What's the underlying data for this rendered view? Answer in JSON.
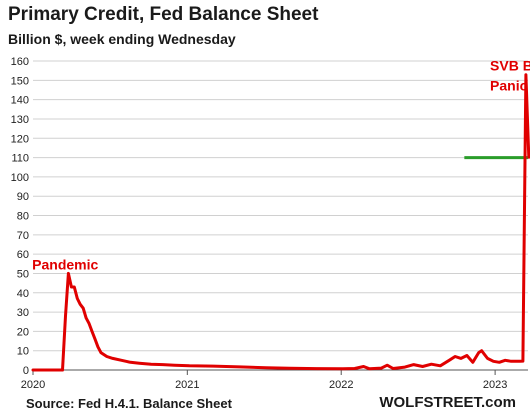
{
  "title": "Primary Credit, Fed Balance Sheet",
  "subtitle": "Billion $, week ending Wednesday",
  "source": "Source: Fed H.4.1. Balance Sheet",
  "brand": "WOLFSTREET.com",
  "colors": {
    "line": "#e00000",
    "reference": "#2a9d2a",
    "grid": "#d0d0d0",
    "annotation": "#e00000"
  },
  "chart_data": {
    "type": "line",
    "title": "Primary Credit, Fed Balance Sheet",
    "subtitle": "Billion $, week ending Wednesday",
    "ylim": [
      0,
      160
    ],
    "xlim": [
      "2020-01-01",
      "2023-03-20"
    ],
    "yticks": [
      0,
      10,
      20,
      30,
      40,
      50,
      60,
      70,
      80,
      90,
      100,
      110,
      120,
      130,
      140,
      150,
      160
    ],
    "xticks": [
      {
        "label": "2020",
        "date": "2020-01-01"
      },
      {
        "label": "2021",
        "date": "2021-01-01"
      },
      {
        "label": "2022",
        "date": "2022-01-01"
      },
      {
        "label": "2023",
        "date": "2023-01-01"
      }
    ],
    "grid": true,
    "legend": "none",
    "series": [
      {
        "points": [
          [
            "2020-01-01",
            0
          ],
          [
            "2020-03-11",
            0
          ],
          [
            "2020-03-18",
            28
          ],
          [
            "2020-03-25",
            50
          ],
          [
            "2020-04-01",
            43
          ],
          [
            "2020-04-08",
            43
          ],
          [
            "2020-04-15",
            37
          ],
          [
            "2020-04-22",
            34
          ],
          [
            "2020-04-29",
            32
          ],
          [
            "2020-05-06",
            27
          ],
          [
            "2020-05-13",
            24
          ],
          [
            "2020-05-20",
            20
          ],
          [
            "2020-05-27",
            16
          ],
          [
            "2020-06-03",
            12
          ],
          [
            "2020-06-10",
            9
          ],
          [
            "2020-06-24",
            7
          ],
          [
            "2020-07-08",
            6
          ],
          [
            "2020-07-29",
            5
          ],
          [
            "2020-08-19",
            4
          ],
          [
            "2020-09-09",
            3.5
          ],
          [
            "2020-10-07",
            3
          ],
          [
            "2020-11-04",
            2.8
          ],
          [
            "2020-12-02",
            2.5
          ],
          [
            "2021-01-06",
            2.2
          ],
          [
            "2021-03-03",
            2
          ],
          [
            "2021-05-05",
            1.6
          ],
          [
            "2021-07-07",
            1.2
          ],
          [
            "2021-09-01",
            0.9
          ],
          [
            "2021-11-03",
            0.7
          ],
          [
            "2022-01-05",
            0.6
          ],
          [
            "2022-02-02",
            0.8
          ],
          [
            "2022-02-23",
            1.8
          ],
          [
            "2022-03-09",
            0.6
          ],
          [
            "2022-04-06",
            1.0
          ],
          [
            "2022-04-20",
            2.5
          ],
          [
            "2022-05-04",
            0.8
          ],
          [
            "2022-06-01",
            1.5
          ],
          [
            "2022-06-22",
            2.8
          ],
          [
            "2022-07-13",
            1.8
          ],
          [
            "2022-08-03",
            3.0
          ],
          [
            "2022-08-24",
            2.2
          ],
          [
            "2022-09-14",
            5.0
          ],
          [
            "2022-09-28",
            7.0
          ],
          [
            "2022-10-12",
            6.0
          ],
          [
            "2022-10-26",
            7.5
          ],
          [
            "2022-11-09",
            4.0
          ],
          [
            "2022-11-23",
            9.0
          ],
          [
            "2022-11-30",
            10.0
          ],
          [
            "2022-12-14",
            6.0
          ],
          [
            "2022-12-28",
            4.5
          ],
          [
            "2023-01-11",
            4.0
          ],
          [
            "2023-01-25",
            5.0
          ],
          [
            "2023-02-08",
            4.5
          ],
          [
            "2023-02-22",
            4.5
          ],
          [
            "2023-03-01",
            4.5
          ],
          [
            "2023-03-08",
            4.6
          ],
          [
            "2023-03-15",
            152.9
          ],
          [
            "2023-03-22",
            110.2
          ]
        ]
      }
    ],
    "reference_line": {
      "y": 110,
      "from": "2022-10-20",
      "to": "2023-03-20"
    },
    "annotations": [
      {
        "text": "Pandemic",
        "x": "2019-12-30",
        "y": 52
      },
      {
        "lines": [
          "SVB Bank",
          "Panic"
        ],
        "x": "2022-12-20",
        "y": 155
      }
    ]
  }
}
